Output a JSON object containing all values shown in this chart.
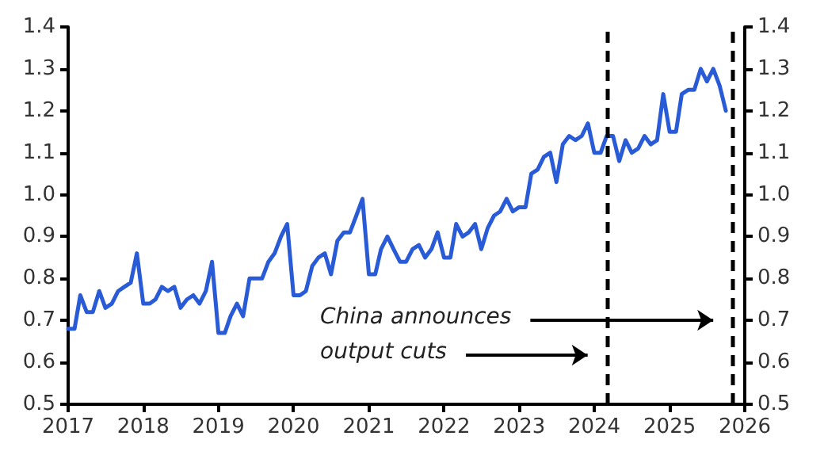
{
  "chart_data": {
    "type": "line",
    "x": [
      "2017-01",
      "2017-02",
      "2017-03",
      "2017-04",
      "2017-05",
      "2017-06",
      "2017-07",
      "2017-08",
      "2017-09",
      "2017-10",
      "2017-11",
      "2017-12",
      "2018-01",
      "2018-02",
      "2018-03",
      "2018-04",
      "2018-05",
      "2018-06",
      "2018-07",
      "2018-08",
      "2018-09",
      "2018-10",
      "2018-11",
      "2018-12",
      "2019-01",
      "2019-02",
      "2019-03",
      "2019-04",
      "2019-05",
      "2019-06",
      "2019-07",
      "2019-08",
      "2019-09",
      "2019-10",
      "2019-11",
      "2019-12",
      "2020-01",
      "2020-02",
      "2020-03",
      "2020-04",
      "2020-05",
      "2020-06",
      "2020-07",
      "2020-08",
      "2020-09",
      "2020-10",
      "2020-11",
      "2020-12",
      "2021-01",
      "2021-02",
      "2021-03",
      "2021-04",
      "2021-05",
      "2021-06",
      "2021-07",
      "2021-08",
      "2021-09",
      "2021-10",
      "2021-11",
      "2021-12",
      "2022-01",
      "2022-02",
      "2022-03",
      "2022-04",
      "2022-05",
      "2022-06",
      "2022-07",
      "2022-08",
      "2022-09",
      "2022-10",
      "2022-11",
      "2022-12",
      "2023-01",
      "2023-02",
      "2023-03",
      "2023-04",
      "2023-05",
      "2023-06",
      "2023-07",
      "2023-08",
      "2023-09",
      "2023-10",
      "2023-11",
      "2023-12",
      "2024-01",
      "2024-02",
      "2024-03",
      "2024-04",
      "2024-05",
      "2024-06",
      "2024-07",
      "2024-08",
      "2024-09",
      "2024-10",
      "2024-11",
      "2024-12",
      "2025-01",
      "2025-02",
      "2025-03",
      "2025-04",
      "2025-05",
      "2025-06",
      "2025-07",
      "2025-08",
      "2025-09",
      "2025-10"
    ],
    "series": [
      {
        "color": "#2a5bd7",
        "values": [
          0.68,
          0.68,
          0.76,
          0.72,
          0.72,
          0.77,
          0.73,
          0.74,
          0.77,
          0.78,
          0.79,
          0.86,
          0.74,
          0.74,
          0.75,
          0.78,
          0.77,
          0.78,
          0.73,
          0.75,
          0.76,
          0.74,
          0.77,
          0.84,
          0.67,
          0.67,
          0.71,
          0.74,
          0.71,
          0.8,
          0.8,
          0.8,
          0.84,
          0.86,
          0.9,
          0.93,
          0.76,
          0.76,
          0.77,
          0.83,
          0.85,
          0.86,
          0.81,
          0.89,
          0.91,
          0.91,
          0.95,
          0.99,
          0.81,
          0.81,
          0.87,
          0.9,
          0.87,
          0.84,
          0.84,
          0.87,
          0.88,
          0.85,
          0.87,
          0.91,
          0.85,
          0.85,
          0.93,
          0.9,
          0.91,
          0.93,
          0.87,
          0.92,
          0.95,
          0.96,
          0.99,
          0.96,
          0.97,
          0.97,
          1.05,
          1.06,
          1.09,
          1.1,
          1.03,
          1.12,
          1.14,
          1.13,
          1.14,
          1.17,
          1.1,
          1.1,
          1.14,
          1.14,
          1.08,
          1.13,
          1.1,
          1.11,
          1.14,
          1.12,
          1.13,
          1.24,
          1.15,
          1.15,
          1.24,
          1.25,
          1.25,
          1.3,
          1.27,
          1.3,
          1.26,
          1.2
        ]
      }
    ],
    "xlim": [
      "2017",
      "2026"
    ],
    "xticks": [
      {
        "value": "2017",
        "label": "2017"
      },
      {
        "value": "2018",
        "label": "2018"
      },
      {
        "value": "2019",
        "label": "2019"
      },
      {
        "value": "2020",
        "label": "2020"
      },
      {
        "value": "2021",
        "label": "2021"
      },
      {
        "value": "2022",
        "label": "2022"
      },
      {
        "value": "2023",
        "label": "2023"
      },
      {
        "value": "2024",
        "label": "2024"
      },
      {
        "value": "2025",
        "label": "2025"
      },
      {
        "value": "2026",
        "label": "2026"
      }
    ],
    "ylim": [
      0.5,
      1.4
    ],
    "yticks": [
      0.5,
      0.6,
      0.7,
      0.8,
      0.9,
      {
        "value": 1,
        "label": "1.0"
      },
      1.1,
      1.2,
      1.3,
      1.4
    ],
    "y2lim": [
      0.5,
      1.4
    ],
    "y2ticks": [
      0.5,
      0.6,
      0.7,
      0.8,
      0.9,
      {
        "value": 1,
        "label": "1.0"
      },
      1.1,
      1.2,
      1.3,
      1.4
    ],
    "ref_lines": [
      {
        "axis": "x",
        "value": "2024-03-01",
        "label": null,
        "color": "#000000",
        "line_style": "dashed"
      },
      {
        "axis": "x",
        "value": "2025-11-01",
        "label": null,
        "color": "#000000",
        "line_style": "dashed"
      }
    ],
    "annotations": [
      "China announces",
      "output cuts"
    ],
    "grid": false,
    "marker": "none",
    "line_style": "solid"
  }
}
